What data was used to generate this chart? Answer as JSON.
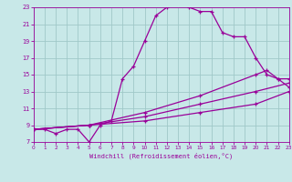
{
  "title": "",
  "xlabel": "Windchill (Refroidissement éolien,°C)",
  "xlim": [
    0,
    23
  ],
  "ylim": [
    7,
    23
  ],
  "xticks": [
    0,
    1,
    2,
    3,
    4,
    5,
    6,
    7,
    8,
    9,
    10,
    11,
    12,
    13,
    14,
    15,
    16,
    17,
    18,
    19,
    20,
    21,
    22,
    23
  ],
  "yticks": [
    7,
    9,
    11,
    13,
    15,
    17,
    19,
    21,
    23
  ],
  "background_color": "#c8e8e8",
  "grid_color": "#a0c8c8",
  "line_color": "#990099",
  "lines": [
    {
      "x": [
        0,
        1,
        2,
        3,
        4,
        5,
        6,
        7,
        8,
        9,
        10,
        11,
        12,
        13,
        14,
        15,
        16,
        17,
        18,
        19,
        20,
        21,
        22,
        23
      ],
      "y": [
        8.5,
        8.5,
        8.0,
        8.5,
        8.5,
        7.0,
        9.0,
        9.5,
        14.5,
        16.0,
        19.0,
        22.0,
        23.0,
        23.5,
        23.0,
        22.5,
        22.5,
        20.0,
        19.5,
        19.5,
        17.0,
        15.0,
        14.5,
        14.5
      ]
    },
    {
      "x": [
        0,
        5,
        10,
        15,
        20,
        21,
        22,
        23
      ],
      "y": [
        8.5,
        9.0,
        10.5,
        12.5,
        15.0,
        15.5,
        14.5,
        13.5
      ]
    },
    {
      "x": [
        0,
        5,
        10,
        15,
        20,
        23
      ],
      "y": [
        8.5,
        9.0,
        10.0,
        11.5,
        13.0,
        14.0
      ]
    },
    {
      "x": [
        0,
        5,
        10,
        15,
        20,
        23
      ],
      "y": [
        8.5,
        9.0,
        9.5,
        10.5,
        11.5,
        13.0
      ]
    }
  ]
}
